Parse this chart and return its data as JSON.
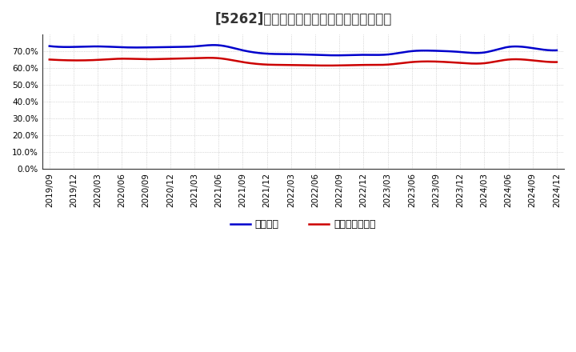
{
  "title": "[5262]　固定比率、固定長期適合率の推移",
  "x_labels": [
    "2019/09",
    "2019/12",
    "2020/03",
    "2020/06",
    "2020/09",
    "2020/12",
    "2021/03",
    "2021/06",
    "2021/09",
    "2021/12",
    "2022/03",
    "2022/06",
    "2022/09",
    "2022/12",
    "2023/03",
    "2023/06",
    "2023/09",
    "2023/12",
    "2024/03",
    "2024/06",
    "2024/09",
    "2024/12"
  ],
  "fixed_ratio": [
    73.0,
    72.5,
    72.8,
    72.3,
    72.2,
    72.5,
    72.8,
    73.5,
    70.5,
    68.5,
    68.2,
    67.8,
    67.5,
    67.8,
    68.0,
    70.0,
    70.2,
    69.5,
    69.2,
    72.5,
    71.8,
    70.5
  ],
  "fixed_long_ratio": [
    65.0,
    64.5,
    64.8,
    65.5,
    65.2,
    65.5,
    65.8,
    65.8,
    63.5,
    62.0,
    61.8,
    61.5,
    61.5,
    61.8,
    62.0,
    63.5,
    63.8,
    63.0,
    62.8,
    65.0,
    64.5,
    63.5
  ],
  "line1_color": "#0000cc",
  "line2_color": "#cc0000",
  "ylim": [
    0,
    80
  ],
  "yticks": [
    0.0,
    10.0,
    20.0,
    30.0,
    40.0,
    50.0,
    60.0,
    70.0
  ],
  "background_color": "#ffffff",
  "grid_color": "#bbbbbb",
  "legend1": "固定比率",
  "legend2": "固定長期適合率",
  "title_fontsize": 12,
  "tick_fontsize": 7.5,
  "legend_fontsize": 9,
  "linewidth": 1.8
}
